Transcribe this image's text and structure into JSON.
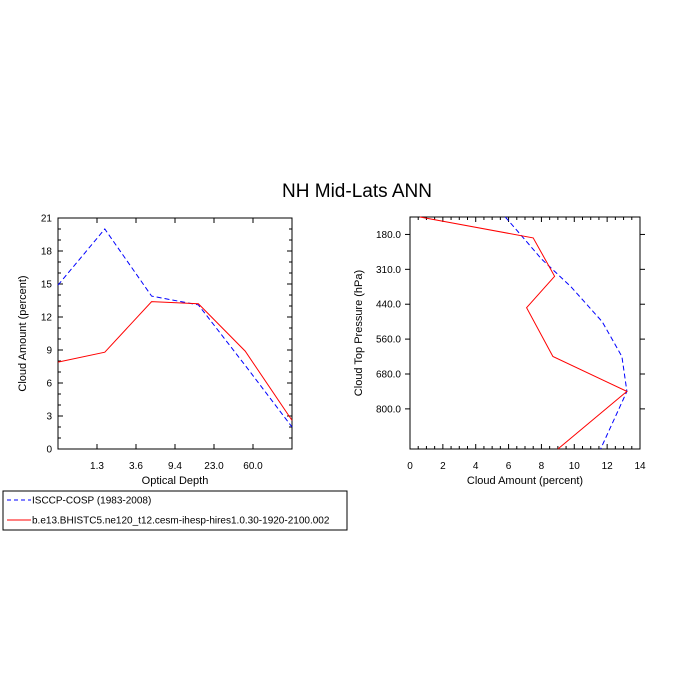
{
  "figure": {
    "title": "NH Mid-Lats ANN"
  },
  "legend": {
    "placement": "bottom-left",
    "entries": [
      {
        "label": "ISCCP-COSP (1983-2008)",
        "color": "#0000ff",
        "dash": "dashed"
      },
      {
        "label": "b.e13.BHISTC5.ne120_t12.cesm-ihesp-hires1.0.30-1920-2100.002",
        "color": "#ff0000",
        "dash": "solid"
      }
    ]
  },
  "chart_data": [
    {
      "type": "line",
      "xlabel": "Optical Depth",
      "ylabel": "Cloud Amount (percent)",
      "x_tick_labels": [
        "1.3",
        "3.6",
        "9.4",
        "23.0",
        "60.0"
      ],
      "x_tick_positions": [
        1,
        2,
        3,
        4,
        5
      ],
      "xlim": [
        0,
        6
      ],
      "ylim": [
        0,
        21
      ],
      "y_ticks": [
        0,
        3,
        6,
        9,
        12,
        15,
        18,
        21
      ],
      "y_tick_labels": [
        "0",
        "3",
        "6",
        "9",
        "12",
        "15",
        "18",
        "21"
      ],
      "grid": false,
      "series": [
        {
          "name": "ISCCP-COSP (1983-2008)",
          "color": "#0000ff",
          "dash": "dashed",
          "x": [
            0,
            1.2,
            2.4,
            3.6,
            4.8,
            6
          ],
          "y": [
            14.9,
            20.0,
            13.9,
            13.1,
            7.6,
            2.0
          ]
        },
        {
          "name": "b.e13.BHISTC5.ne120_t12.cesm-ihesp-hires1.0.30-1920-2100.002",
          "color": "#ff0000",
          "dash": "solid",
          "x": [
            0,
            1.2,
            2.4,
            3.6,
            4.8,
            6
          ],
          "y": [
            7.9,
            8.8,
            13.4,
            13.2,
            8.9,
            2.6
          ]
        }
      ]
    },
    {
      "type": "line",
      "xlabel": "Cloud Amount (percent)",
      "ylabel": "Cloud Top Pressure (hPa)",
      "xlim": [
        0,
        14
      ],
      "x_ticks": [
        0,
        2,
        4,
        6,
        8,
        10,
        12,
        14
      ],
      "x_tick_labels": [
        "0",
        "2",
        "4",
        "6",
        "8",
        "10",
        "12",
        "14"
      ],
      "y_tick_labels": [
        "180.0",
        "310.0",
        "440.0",
        "560.0",
        "680.0",
        "800.0"
      ],
      "y_tick_positions": [
        1,
        2,
        3,
        4,
        5,
        6
      ],
      "ylim": [
        0.5,
        7.15
      ],
      "y_reversed": true,
      "grid": false,
      "series": [
        {
          "name": "ISCCP-COSP (1983-2008)",
          "color": "#0000ff",
          "dash": "dashed",
          "x": [
            5.8,
            6.9,
            8.0,
            9.8,
            11.7,
            12.9,
            13.2,
            11.6
          ],
          "y": [
            0.5,
            1.1,
            1.7,
            2.5,
            3.5,
            4.5,
            5.5,
            7.15
          ]
        },
        {
          "name": "b.e13.BHISTC5.ne120_t12.cesm-ihesp-hires1.0.30-1920-2100.002",
          "color": "#ff0000",
          "dash": "solid",
          "x": [
            0.6,
            7.5,
            8.8,
            7.1,
            8.7,
            13.2,
            9.0
          ],
          "y": [
            0.5,
            1.1,
            2.2,
            3.1,
            4.5,
            5.5,
            7.15
          ]
        }
      ]
    }
  ]
}
